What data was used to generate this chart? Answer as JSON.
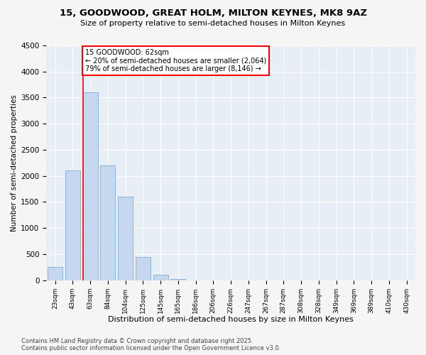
{
  "title1": "15, GOODWOOD, GREAT HOLM, MILTON KEYNES, MK8 9AZ",
  "title2": "Size of property relative to semi-detached houses in Milton Keynes",
  "xlabel": "Distribution of semi-detached houses by size in Milton Keynes",
  "ylabel": "Number of semi-detached properties",
  "categories": [
    "23sqm",
    "43sqm",
    "63sqm",
    "84sqm",
    "104sqm",
    "125sqm",
    "145sqm",
    "165sqm",
    "186sqm",
    "206sqm",
    "226sqm",
    "247sqm",
    "267sqm",
    "287sqm",
    "308sqm",
    "328sqm",
    "349sqm",
    "369sqm",
    "389sqm",
    "410sqm",
    "430sqm"
  ],
  "values": [
    250,
    2100,
    3600,
    2200,
    1600,
    450,
    100,
    30,
    0,
    0,
    0,
    0,
    0,
    0,
    0,
    0,
    0,
    0,
    0,
    0,
    0
  ],
  "bar_color": "#c5d8f0",
  "bar_edgecolor": "#8ab4d8",
  "redline_index": 2,
  "annotation_title": "15 GOODWOOD: 62sqm",
  "annotation_line1": "← 20% of semi-detached houses are smaller (2,064)",
  "annotation_line2": "79% of semi-detached houses are larger (8,146) →",
  "ylim": [
    0,
    4500
  ],
  "yticks": [
    0,
    500,
    1000,
    1500,
    2000,
    2500,
    3000,
    3500,
    4000,
    4500
  ],
  "footer1": "Contains HM Land Registry data © Crown copyright and database right 2025.",
  "footer2": "Contains public sector information licensed under the Open Government Licence v3.0.",
  "bg_color": "#f5f5f5",
  "plot_bg_color": "#e8eef5"
}
